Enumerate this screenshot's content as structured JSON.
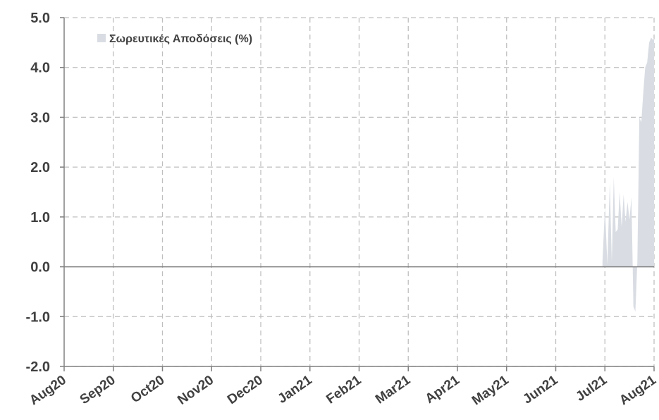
{
  "chart_data": {
    "type": "area",
    "legend_position": "top-left",
    "grid": true,
    "ylim": [
      -2.0,
      5.0
    ],
    "yticks": [
      "-2.0",
      "-1.0",
      "0.0",
      "1.0",
      "2.0",
      "3.0",
      "4.0",
      "5.0"
    ],
    "xticks": [
      "Aug20",
      "Sep20",
      "Oct20",
      "Nov20",
      "Dec20",
      "Jan21",
      "Feb21",
      "Mar21",
      "Apr21",
      "May21",
      "Jun21",
      "Jul21",
      "Aug21"
    ],
    "series": [
      {
        "name": "Σωρευτικές Αποδόσεις (%)",
        "color": "#d9dde3",
        "x": [
          10.95,
          11.0,
          11.05,
          11.1,
          11.14,
          11.18,
          11.22,
          11.26,
          11.3,
          11.34,
          11.38,
          11.42,
          11.46,
          11.5,
          11.54,
          11.58,
          11.62,
          11.66,
          11.7,
          11.74,
          11.78,
          11.82,
          11.86,
          11.9,
          11.94,
          11.98,
          12.0
        ],
        "values": [
          0.1,
          1.2,
          0.05,
          1.7,
          0.1,
          1.8,
          0.7,
          0.75,
          1.5,
          0.8,
          1.45,
          0.9,
          1.3,
          0.95,
          1.4,
          -0.8,
          -0.9,
          0.1,
          3.0,
          2.9,
          3.5,
          4.0,
          4.1,
          4.5,
          4.6,
          4.55,
          4.6
        ]
      }
    ]
  }
}
